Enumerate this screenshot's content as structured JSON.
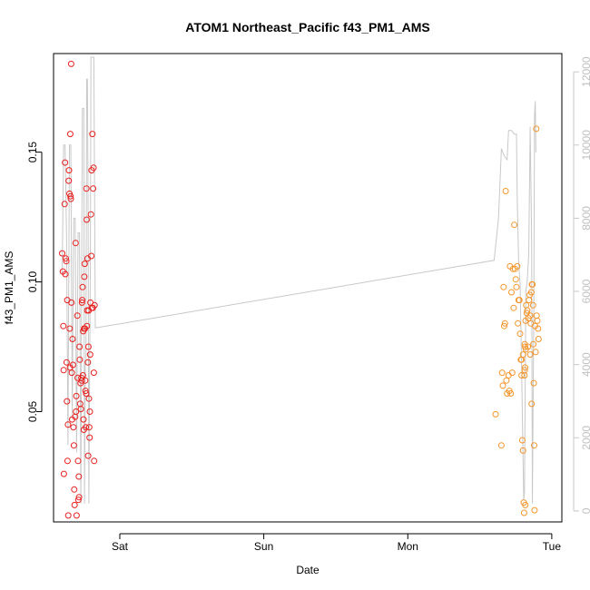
{
  "chart_data": {
    "type": "scatter",
    "title": "ATOM1 Northeast_Pacific f43_PM1_AMS",
    "xlabel": "Date",
    "ylabel": "f43_PM1_AMS",
    "x_ticks": [
      "Sat",
      "Sun",
      "Mon",
      "Tue"
    ],
    "x_units": "days since Friday 00:00",
    "xlim": [
      0.54,
      4.07
    ],
    "ylim": [
      0.0075,
      0.188
    ],
    "y_ticks": [
      0.05,
      0.1,
      0.15
    ],
    "y_tick_labels": [
      "0.05",
      "0.10",
      "0.15"
    ],
    "y2_ticks": [
      0,
      2000,
      4000,
      6000,
      8000,
      10000,
      12000
    ],
    "y2_tick_labels": [
      "0",
      "2000",
      "4000",
      "6000",
      "8000",
      "10000",
      "12000"
    ],
    "y2lim": [
      -300,
      12500
    ],
    "grid": false,
    "series": [
      {
        "color": "#e8201f",
        "points": [
          [
            0.6,
            0.111
          ],
          [
            0.605,
            0.104
          ],
          [
            0.608,
            0.083
          ],
          [
            0.61,
            0.066
          ],
          [
            0.612,
            0.026
          ],
          [
            0.617,
            0.13
          ],
          [
            0.62,
            0.146
          ],
          [
            0.622,
            0.103
          ],
          [
            0.625,
            0.109
          ],
          [
            0.628,
            0.108
          ],
          [
            0.631,
            0.069
          ],
          [
            0.633,
            0.054
          ],
          [
            0.635,
            0.093
          ],
          [
            0.637,
            0.031
          ],
          [
            0.64,
            0.045
          ],
          [
            0.642,
            0.01
          ],
          [
            0.645,
            0.139
          ],
          [
            0.647,
            0.143
          ],
          [
            0.65,
            0.134
          ],
          [
            0.652,
            0.082
          ],
          [
            0.654,
            0.067
          ],
          [
            0.656,
            0.157
          ],
          [
            0.658,
            0.133
          ],
          [
            0.66,
            0.132
          ],
          [
            0.662,
            0.184
          ],
          [
            0.664,
            0.092
          ],
          [
            0.667,
            0.065
          ],
          [
            0.669,
            0.047
          ],
          [
            0.672,
            0.078
          ],
          [
            0.675,
            0.068
          ],
          [
            0.678,
            0.044
          ],
          [
            0.681,
            0.037
          ],
          [
            0.684,
            0.02
          ],
          [
            0.686,
            0.014
          ],
          [
            0.69,
            0.048
          ],
          [
            0.693,
            0.115
          ],
          [
            0.696,
            0.05
          ],
          [
            0.698,
            0.056
          ],
          [
            0.7,
            0.01
          ],
          [
            0.705,
            0.087
          ],
          [
            0.707,
            0.063
          ],
          [
            0.71,
            0.031
          ],
          [
            0.712,
            0.016
          ],
          [
            0.715,
            0.025
          ],
          [
            0.717,
            0.017
          ],
          [
            0.72,
            0.075
          ],
          [
            0.722,
            0.07
          ],
          [
            0.725,
            0.053
          ],
          [
            0.728,
            0.061
          ],
          [
            0.73,
            0.051
          ],
          [
            0.733,
            0.063
          ],
          [
            0.735,
            0.062
          ],
          [
            0.737,
            0.092
          ],
          [
            0.739,
            0.093
          ],
          [
            0.742,
            0.098
          ],
          [
            0.744,
            0.064
          ],
          [
            0.746,
            0.081
          ],
          [
            0.748,
            0.047
          ],
          [
            0.75,
            0.043
          ],
          [
            0.752,
            0.082
          ],
          [
            0.754,
            0.102
          ],
          [
            0.756,
            0.107
          ],
          [
            0.758,
            0.082
          ],
          [
            0.76,
            0.062
          ],
          [
            0.762,
            0.058
          ],
          [
            0.764,
            0.044
          ],
          [
            0.766,
            0.057
          ],
          [
            0.768,
            0.136
          ],
          [
            0.77,
            0.124
          ],
          [
            0.772,
            0.083
          ],
          [
            0.774,
            0.089
          ],
          [
            0.776,
            0.109
          ],
          [
            0.778,
            0.069
          ],
          [
            0.78,
            0.033
          ],
          [
            0.782,
            0.075
          ],
          [
            0.784,
            0.089
          ],
          [
            0.786,
            0.055
          ],
          [
            0.788,
            0.044
          ],
          [
            0.79,
            0.04
          ],
          [
            0.792,
            0.05
          ],
          [
            0.794,
            0.072
          ],
          [
            0.796,
            0.092
          ],
          [
            0.8,
            0.126
          ],
          [
            0.802,
            0.11
          ],
          [
            0.804,
            0.143
          ],
          [
            0.806,
            0.09
          ],
          [
            0.81,
            0.157
          ],
          [
            0.812,
            0.09
          ],
          [
            0.815,
            0.136
          ],
          [
            0.818,
            0.144
          ],
          [
            0.82,
            0.065
          ],
          [
            0.822,
            0.031
          ],
          [
            0.825,
            0.091
          ]
        ]
      },
      {
        "color": "#f4962c",
        "points": [
          [
            3.61,
            0.049
          ],
          [
            3.65,
            0.037
          ],
          [
            3.655,
            0.065
          ],
          [
            3.66,
            0.06
          ],
          [
            3.665,
            0.098
          ],
          [
            3.67,
            0.083
          ],
          [
            3.675,
            0.084
          ],
          [
            3.68,
            0.135
          ],
          [
            3.685,
            0.062
          ],
          [
            3.69,
            0.057
          ],
          [
            3.7,
            0.064
          ],
          [
            3.705,
            0.058
          ],
          [
            3.71,
            0.106
          ],
          [
            3.715,
            0.057
          ],
          [
            3.72,
            0.096
          ],
          [
            3.725,
            0.065
          ],
          [
            3.73,
            0.105
          ],
          [
            3.735,
            0.09
          ],
          [
            3.74,
            0.122
          ],
          [
            3.745,
            0.105
          ],
          [
            3.75,
            0.101
          ],
          [
            3.755,
            0.098
          ],
          [
            3.76,
            0.106
          ],
          [
            3.765,
            0.084
          ],
          [
            3.77,
            0.093
          ],
          [
            3.775,
            0.093
          ],
          [
            3.78,
            0.08
          ],
          [
            3.785,
            0.07
          ],
          [
            3.79,
            0.064
          ],
          [
            3.795,
            0.039
          ],
          [
            3.8,
            0.035
          ],
          [
            3.805,
            0.015
          ],
          [
            3.808,
            0.011
          ],
          [
            3.812,
            0.066
          ],
          [
            3.816,
            0.014
          ],
          [
            3.818,
            0.085
          ],
          [
            3.822,
            0.091
          ],
          [
            3.826,
            0.088
          ],
          [
            3.83,
            0.089
          ],
          [
            3.834,
            0.075
          ],
          [
            3.838,
            0.086
          ],
          [
            3.842,
            0.093
          ],
          [
            3.846,
            0.095
          ],
          [
            3.85,
            0.087
          ],
          [
            3.854,
            0.084
          ],
          [
            3.858,
            0.096
          ],
          [
            3.862,
            0.099
          ],
          [
            3.866,
            0.099
          ],
          [
            3.87,
            0.091
          ],
          [
            3.872,
            0.076
          ],
          [
            3.875,
            0.061
          ],
          [
            3.878,
            0.037
          ],
          [
            3.88,
            0.012
          ],
          [
            3.884,
            0.083
          ],
          [
            3.888,
            0.073
          ],
          [
            3.892,
            0.159
          ],
          [
            3.895,
            0.087
          ],
          [
            3.9,
            0.085
          ],
          [
            3.905,
            0.082
          ],
          [
            3.908,
            0.078
          ],
          [
            3.812,
            0.076
          ],
          [
            3.79,
            0.07
          ],
          [
            3.8,
            0.072
          ],
          [
            3.815,
            0.075
          ],
          [
            3.86,
            0.053
          ],
          [
            3.85,
            0.072
          ],
          [
            3.82,
            0.074
          ],
          [
            3.815,
            0.067
          ],
          [
            3.81,
            0.064
          ]
        ]
      },
      {
        "color": "#c8c8c8",
        "axis": "right",
        "points": [
          [
            0.6,
            6500
          ],
          [
            0.61,
            10000
          ],
          [
            0.62,
            10000
          ],
          [
            0.63,
            7500
          ],
          [
            0.64,
            1800
          ],
          [
            0.65,
            10000
          ],
          [
            0.66,
            10000
          ],
          [
            0.67,
            2600
          ],
          [
            0.68,
            8000
          ],
          [
            0.69,
            8000
          ],
          [
            0.7,
            1600
          ],
          [
            0.71,
            7600
          ],
          [
            0.72,
            7600
          ],
          [
            0.73,
            200
          ],
          [
            0.74,
            11000
          ],
          [
            0.75,
            11000
          ],
          [
            0.755,
            200
          ],
          [
            0.76,
            4000
          ],
          [
            0.765,
            4000
          ],
          [
            0.77,
            11800
          ],
          [
            0.775,
            11800
          ],
          [
            0.78,
            8000
          ],
          [
            0.785,
            200
          ],
          [
            0.79,
            3800
          ],
          [
            0.795,
            6500
          ],
          [
            0.8,
            12400
          ],
          [
            0.81,
            12400
          ],
          [
            0.82,
            12400
          ],
          [
            0.83,
            5000
          ],
          [
            3.6,
            6850
          ],
          [
            3.63,
            8000
          ],
          [
            3.65,
            9900
          ],
          [
            3.67,
            9700
          ],
          [
            3.69,
            9600
          ],
          [
            3.7,
            10400
          ],
          [
            3.72,
            10400
          ],
          [
            3.74,
            10300
          ],
          [
            3.755,
            10300
          ],
          [
            3.76,
            8600
          ],
          [
            3.77,
            6800
          ],
          [
            3.78,
            6200
          ],
          [
            3.79,
            4000
          ],
          [
            3.8,
            1500
          ],
          [
            3.805,
            300
          ],
          [
            3.81,
            500
          ],
          [
            3.815,
            3000
          ],
          [
            3.82,
            6000
          ],
          [
            3.83,
            6300
          ],
          [
            3.84,
            7000
          ],
          [
            3.85,
            10500
          ],
          [
            3.86,
            7500
          ],
          [
            3.865,
            200
          ],
          [
            3.87,
            2800
          ],
          [
            3.875,
            5500
          ],
          [
            3.88,
            10800
          ],
          [
            3.885,
            11200
          ],
          [
            3.89,
            9800
          ]
        ]
      }
    ]
  }
}
